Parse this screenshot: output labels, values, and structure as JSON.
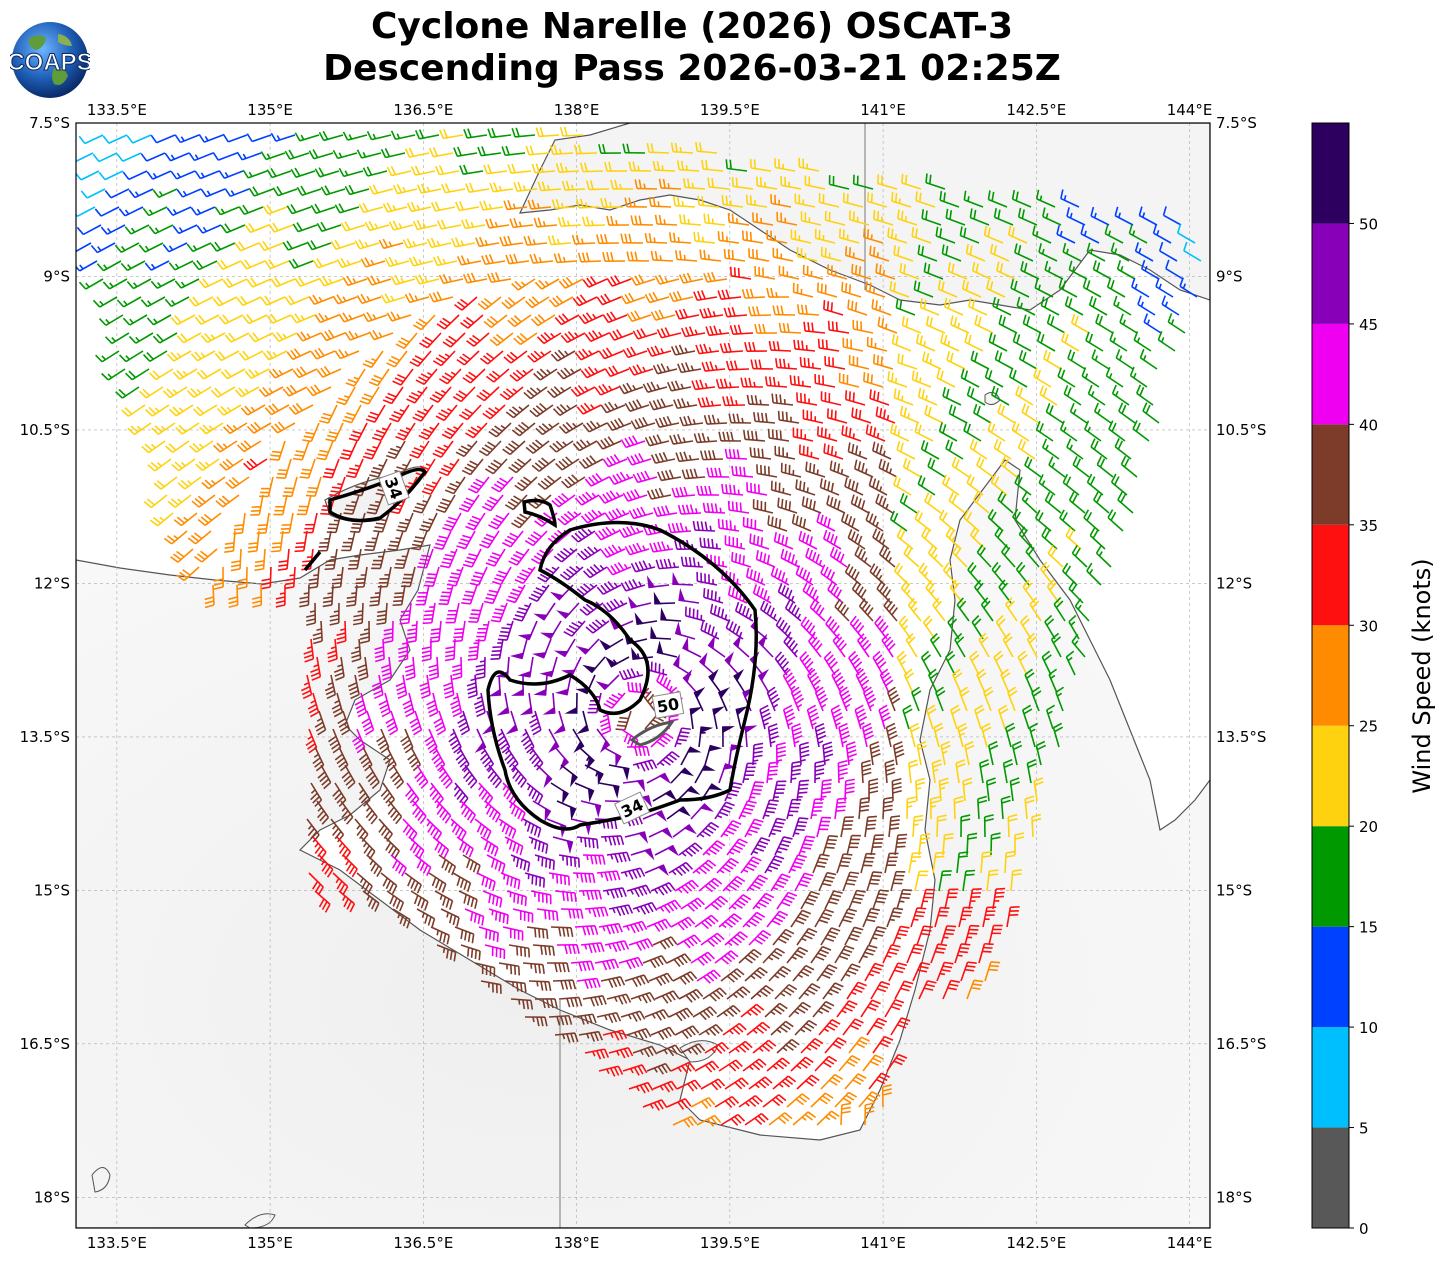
{
  "title": {
    "line1": "Cyclone Narelle (2026) OSCAT-3",
    "line2": "Descending Pass 2026-03-21 02:25Z"
  },
  "logo": {
    "text": "COAPS",
    "icon": "globe-logo-icon"
  },
  "map": {
    "lon_ticks": [
      "133.5°E",
      "135°E",
      "136.5°E",
      "138°E",
      "139.5°E",
      "141°E",
      "142.5°E",
      "144°E"
    ],
    "lat_ticks": [
      "7.5°S",
      "9°S",
      "10.5°S",
      "12°S",
      "13.5°S",
      "15°S",
      "16.5°S",
      "18°S"
    ],
    "lon_range": [
      133.1,
      144.2
    ],
    "lat_range": [
      -18.3,
      -7.5
    ],
    "gridlines": true,
    "contour_labels": [
      "34",
      "34",
      "50"
    ],
    "center_lonlat": [
      138.6,
      -13.3
    ]
  },
  "colorbar": {
    "label": "Wind Speed (knots)",
    "ticks": [
      "0",
      "5",
      "10",
      "15",
      "20",
      "25",
      "30",
      "35",
      "40",
      "45",
      "50"
    ],
    "bins": [
      {
        "min": 0,
        "max": 5,
        "color": "#585858"
      },
      {
        "min": 5,
        "max": 10,
        "color": "#00bfff"
      },
      {
        "min": 10,
        "max": 15,
        "color": "#0040ff"
      },
      {
        "min": 15,
        "max": 20,
        "color": "#009900"
      },
      {
        "min": 20,
        "max": 25,
        "color": "#ffd210"
      },
      {
        "min": 25,
        "max": 30,
        "color": "#ff8c00"
      },
      {
        "min": 30,
        "max": 35,
        "color": "#ff1010"
      },
      {
        "min": 35,
        "max": 40,
        "color": "#7d3c2a"
      },
      {
        "min": 40,
        "max": 45,
        "color": "#f000f0"
      },
      {
        "min": 45,
        "max": 50,
        "color": "#8800b8"
      },
      {
        "min": 50,
        "max": 55,
        "color": "#2d0060"
      }
    ]
  }
}
